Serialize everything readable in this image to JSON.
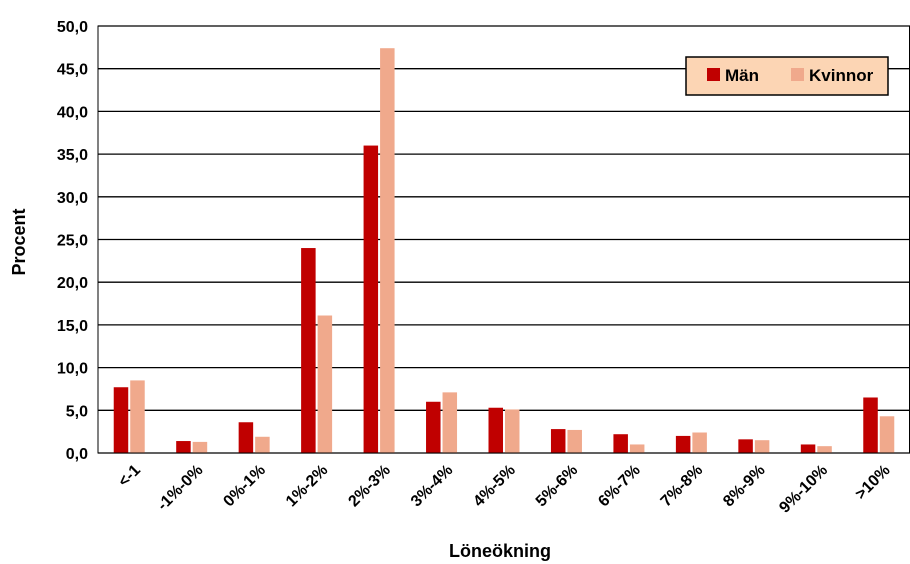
{
  "chart_data": {
    "type": "bar",
    "title": "",
    "xlabel": "Löneökning",
    "ylabel": "Procent",
    "ylim": [
      0,
      50
    ],
    "yticks": [
      "0,0",
      "5,0",
      "10,0",
      "15,0",
      "20,0",
      "25,0",
      "30,0",
      "35,0",
      "40,0",
      "45,0",
      "50,0"
    ],
    "ytick_values": [
      0,
      5,
      10,
      15,
      20,
      25,
      30,
      35,
      40,
      45,
      50
    ],
    "grid": true,
    "legend_position": "top-right",
    "categories": [
      "<-1",
      "-1%-0%",
      "0%-1%",
      "1%-2%",
      "2%-3%",
      "3%-4%",
      "4%-5%",
      "5%-6%",
      "6%-7%",
      "7%-8%",
      "8%-9%",
      "9%-10%",
      ">10%"
    ],
    "series": [
      {
        "name": "Män",
        "color": "#c00000",
        "values": [
          7.7,
          1.4,
          3.6,
          24.0,
          36.0,
          6.0,
          5.3,
          2.8,
          2.2,
          2.0,
          1.6,
          1.0,
          6.5
        ]
      },
      {
        "name": "Kvinnor",
        "color": "#f0a98c",
        "values": [
          8.5,
          1.3,
          1.9,
          16.1,
          47.4,
          7.1,
          5.1,
          2.7,
          1.0,
          2.4,
          1.5,
          0.8,
          4.3
        ]
      }
    ]
  },
  "legend": {
    "background": "#fcd5b4"
  }
}
